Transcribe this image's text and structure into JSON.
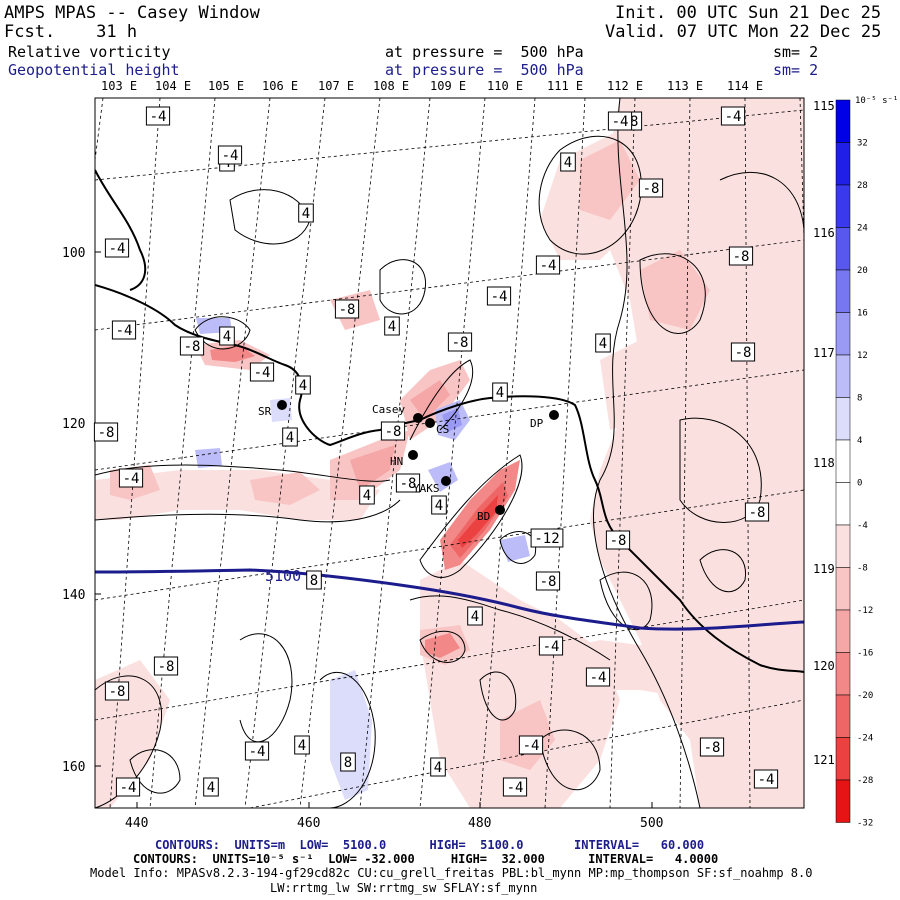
{
  "header": {
    "model": "AMPS MPAS -- Casey Window",
    "fcst_label": "Fcst.",
    "fcst_value": "31 h",
    "init": "Init. 00 UTC Sun 21 Dec 25",
    "valid": "Valid. 07 UTC Mon 22 Dec 25",
    "field1": {
      "name": "Relative vorticity",
      "level": "at pressure =  500 hPa",
      "sm": "sm= 2"
    },
    "field2": {
      "name": "Geopotential height",
      "level": "at pressure =  500 hPa",
      "sm": "sm= 2"
    }
  },
  "axes": {
    "lon_top": [
      "103 E",
      "104 E",
      "105 E",
      "106 E",
      "107 E",
      "108 E",
      "109 E",
      "110 E",
      "111 E",
      "112 E",
      "113 E",
      "114 E"
    ],
    "lon_right": [
      "115 E",
      "116 E",
      "117 E",
      "118 E",
      "119 E",
      "120 E",
      "121 E"
    ],
    "grid_y": [
      "100",
      "120",
      "140",
      "160"
    ],
    "grid_x": [
      "440",
      "460",
      "480",
      "500"
    ]
  },
  "colorbar": {
    "unit": "10⁻⁵ s⁻¹",
    "labels": [
      "32",
      "28",
      "24",
      "20",
      "16",
      "12",
      "8",
      "4",
      "0",
      "-4",
      "-8",
      "-12",
      "-16",
      "-20",
      "-24",
      "-28",
      "-32"
    ],
    "colors": [
      "#0000e6",
      "#1f1fe8",
      "#3a3aec",
      "#5858ef",
      "#7777f2",
      "#9a9af5",
      "#bcbcf8",
      "#dcdcfb",
      "#ffffff",
      "#ffffff",
      "#fbe0e0",
      "#f8c4c4",
      "#f5a6a6",
      "#f28888",
      "#ef6666",
      "#eb4141",
      "#e61414"
    ]
  },
  "contour_labels": [
    "-4",
    "-8",
    "4",
    "-4",
    "-8",
    "4",
    "4",
    "-4",
    "-4",
    "-8",
    "-8",
    "4",
    "-4",
    "-4",
    "4",
    "-8",
    "-8",
    "4",
    "-8",
    "4",
    "-4",
    "4",
    "4",
    "-8",
    "-4",
    "-8",
    "4",
    "4",
    "-8",
    "-8",
    "-12",
    "8",
    "-8",
    "4",
    "-4",
    "-8",
    "-4",
    "-8",
    "-4",
    "-4",
    "-8",
    "4",
    "-4",
    "4",
    "8",
    "-4",
    "4",
    "-4",
    "-8",
    "-4",
    "-4"
  ],
  "height_label": "5100",
  "stations": [
    {
      "name": "SR"
    },
    {
      "name": "Casey"
    },
    {
      "name": "CS"
    },
    {
      "name": "HN"
    },
    {
      "name": "YAKS"
    },
    {
      "name": "DP"
    },
    {
      "name": "BD"
    }
  ],
  "footer": {
    "line1_a": "CONTOURS:  UNITS=m  LOW=  5100.0",
    "line1_b": "HIGH=  5100.0",
    "line1_c": "INTERVAL=   60.000",
    "line2_a": "CONTOURS:  UNITS=10⁻⁵ s⁻¹  LOW= -32.000",
    "line2_b": "HIGH=  32.000",
    "line2_c": "INTERVAL=   4.0000",
    "line3": "Model Info: MPASv8.2.3-194-gf29cd82c CU:cu_grell_freitas PBL:bl_mynn MP:mp_thompson SF:sf_noahmp 8.0",
    "line4": "LW:rrtmg_lw SW:rrtmg_sw SFLAY:sf_mynn"
  }
}
